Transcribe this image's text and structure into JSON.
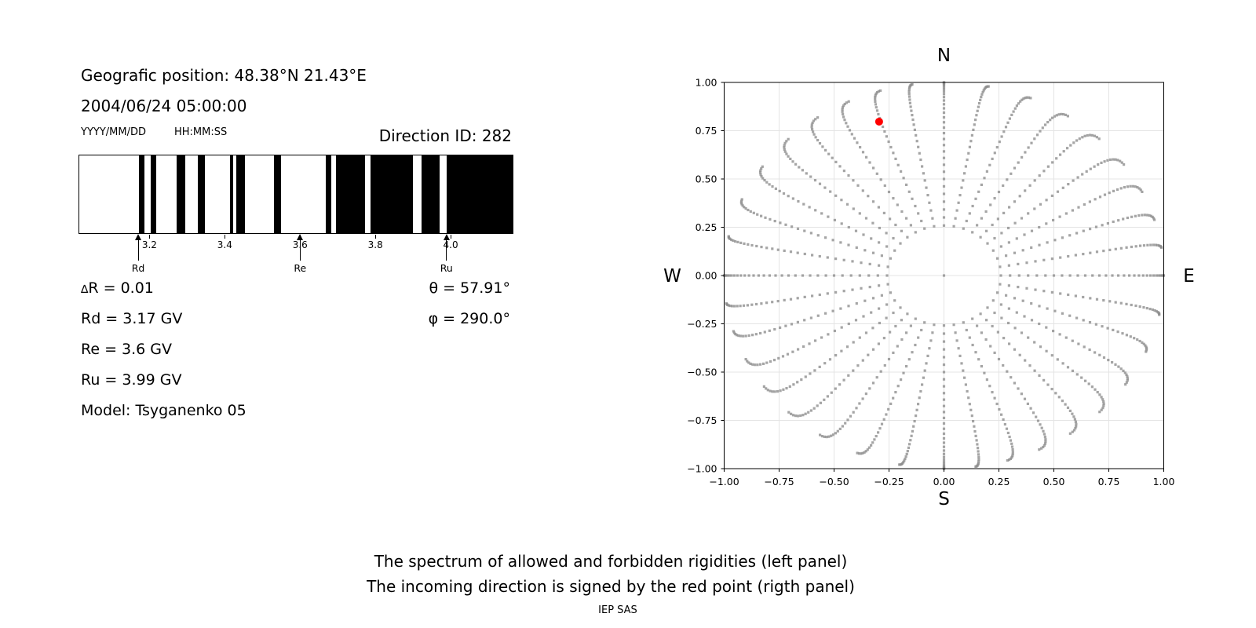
{
  "header": {
    "geo": "Geografic position: 48.38°N 21.43°E",
    "datetime": "2004/06/24 05:00:00",
    "date_format": "YYYY/MM/DD",
    "time_format": "HH:MM:SS",
    "direction_id": "Direction ID: 282"
  },
  "values": {
    "delta_sym": "∆",
    "delta_rest": "R = 0.01",
    "rd": "Rd = 3.17 GV",
    "re": "Re = 3.6 GV",
    "ru": "Ru = 3.99 GV",
    "model": "Model: Tsyganenko 05",
    "theta": "θ = 57.91°",
    "phi": "φ = 290.0°"
  },
  "caption": {
    "line1": "The spectrum of allowed and forbidden rigidities (left panel)",
    "line2": "The incoming direction is signed by the red point (rigth panel)",
    "credit": "IEP SAS"
  },
  "chart_data": [
    {
      "type": "barcode",
      "description": "Spectrum of allowed (black) and forbidden (white) rigidities",
      "x_unit": "GV",
      "x_ticks": [
        3.2,
        3.4,
        3.6,
        3.8,
        4.0
      ],
      "x_tick_pos_pct": [
        16.38,
        33.76,
        51.13,
        68.51,
        85.88
      ],
      "allowed_bands_pct": [
        [
          13.7,
          15.1
        ],
        [
          16.4,
          17.7
        ],
        [
          22.4,
          24.5
        ],
        [
          27.4,
          29.0
        ],
        [
          34.8,
          35.5
        ],
        [
          36.2,
          38.3
        ],
        [
          45.0,
          46.6
        ],
        [
          56.8,
          58.1
        ],
        [
          59.2,
          66.0
        ],
        [
          67.2,
          77.0
        ],
        [
          79.0,
          83.2
        ],
        [
          84.8,
          100.0
        ]
      ],
      "band_color": "#000000",
      "markers": [
        {
          "label": "Rd",
          "value_gv": 3.17,
          "pos_pct": 13.77
        },
        {
          "label": "Re",
          "value_gv": 3.6,
          "pos_pct": 51.13
        },
        {
          "label": "Ru",
          "value_gv": 3.99,
          "pos_pct": 84.92
        }
      ]
    },
    {
      "type": "scatter",
      "description": "Incoming direction map; gray dots = direction grid, red dot = incoming direction",
      "xlim": [
        -1,
        1
      ],
      "ylim": [
        -1,
        1
      ],
      "ticks": [
        -1,
        -0.75,
        -0.5,
        -0.25,
        0,
        0.25,
        0.5,
        0.75,
        1
      ],
      "grid": true,
      "grid_color": "#e4e4e4",
      "compass": {
        "north": "N",
        "south": "S",
        "east": "E",
        "west": "W"
      },
      "spokes": {
        "count": 36,
        "azimuth_step_deg": 10,
        "zenith_min_deg": 15,
        "zenith_max_deg": 90,
        "zenith_step_deg": 2.5,
        "radius_rule": "sin(zenith)",
        "tip_bend_deg": 5
      },
      "has_center_dot": true,
      "dot_color": "#8c8c8c",
      "red_point": {
        "x": -0.295,
        "y": 0.797,
        "theta_deg": 57.91,
        "phi_deg": 290.0,
        "color": "#ff0000"
      }
    }
  ]
}
